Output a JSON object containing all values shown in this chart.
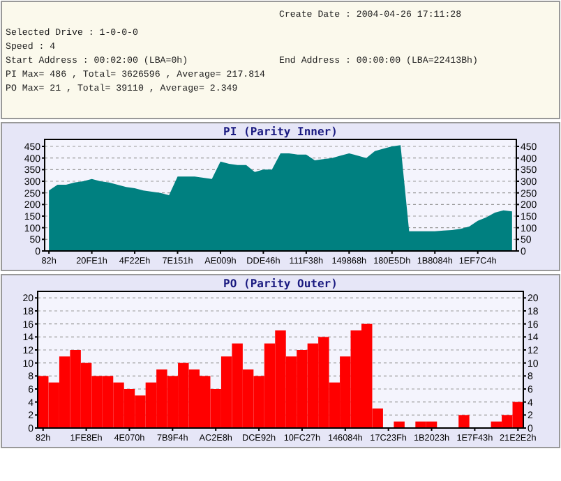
{
  "chart_data": [
    {
      "type": "other",
      "annotations": [
        "Create Date : 2004-04-26 17:11:28",
        "Selected Drive : 1-0-0-0",
        "Speed : 4",
        "Start Address : 00:02:00 (LBA=0h)",
        "End Address : 00:00:00 (LBA=22413Bh)",
        "PI Max= 486 , Total= 3626596 , Average= 217.814",
        "PO Max= 21 , Total= 39110 , Average= 2.349"
      ]
    },
    {
      "type": "area",
      "title": "PI (Parity Inner)",
      "color": "#008080",
      "grid": "y",
      "categories": [
        "82h",
        null,
        null,
        null,
        null,
        "20FE1h",
        null,
        null,
        null,
        null,
        "4F22Eh",
        null,
        null,
        null,
        null,
        "7E151h",
        null,
        null,
        null,
        null,
        "AE009h",
        null,
        null,
        null,
        null,
        "DDE46h",
        null,
        null,
        null,
        null,
        "111F38h",
        null,
        null,
        null,
        null,
        "149868h",
        null,
        null,
        null,
        null,
        "180E5Dh",
        null,
        null,
        null,
        null,
        "1B8084h",
        null,
        null,
        null,
        null,
        "1EF7C4h",
        null,
        null,
        null,
        null
      ],
      "values": [
        260,
        285,
        285,
        295,
        300,
        310,
        300,
        295,
        285,
        275,
        270,
        260,
        255,
        250,
        240,
        320,
        320,
        320,
        315,
        310,
        385,
        375,
        370,
        370,
        340,
        350,
        350,
        420,
        420,
        415,
        415,
        390,
        395,
        400,
        410,
        420,
        410,
        400,
        430,
        440,
        450,
        455,
        85,
        85,
        85,
        85,
        88,
        90,
        95,
        105,
        130,
        145,
        165,
        175,
        170
      ],
      "ylim": [
        0,
        480
      ],
      "yticks": [
        0,
        50,
        100,
        150,
        200,
        250,
        300,
        350,
        400,
        450
      ],
      "y2lim": [
        0,
        480
      ],
      "y2ticks": [
        0,
        50,
        100,
        150,
        200,
        250,
        300,
        350,
        400,
        450
      ]
    },
    {
      "type": "bar",
      "title": "PO (Parity Outer)",
      "color": "#ff0000",
      "grid": "y",
      "categories": [
        "82h",
        null,
        null,
        null,
        "1FE8Eh",
        null,
        null,
        null,
        "4E070h",
        null,
        null,
        null,
        "7B9F4h",
        null,
        null,
        null,
        "AC2E8h",
        null,
        null,
        null,
        "DCE92h",
        null,
        null,
        null,
        "10FC27h",
        null,
        null,
        null,
        "146084h",
        null,
        null,
        null,
        "17C23Fh",
        null,
        null,
        null,
        "1B2023h",
        null,
        null,
        null,
        "1E7F43h",
        null,
        null,
        null,
        "21E2E2h"
      ],
      "values": [
        8,
        7,
        11,
        12,
        10,
        8,
        8,
        7,
        6,
        5,
        7,
        9,
        8,
        10,
        9,
        8,
        6,
        11,
        13,
        9,
        8,
        13,
        15,
        11,
        12,
        13,
        14,
        7,
        11,
        15,
        16,
        3,
        0,
        1,
        0,
        1,
        1,
        0,
        0,
        2,
        0,
        0,
        1,
        2,
        4
      ],
      "ylim": [
        0,
        21
      ],
      "yticks": [
        0,
        2,
        4,
        6,
        8,
        10,
        12,
        14,
        16,
        18,
        20
      ],
      "y2lim": [
        0,
        21
      ],
      "y2ticks": [
        0,
        2,
        4,
        6,
        8,
        10,
        12,
        14,
        16,
        18,
        20
      ]
    }
  ]
}
